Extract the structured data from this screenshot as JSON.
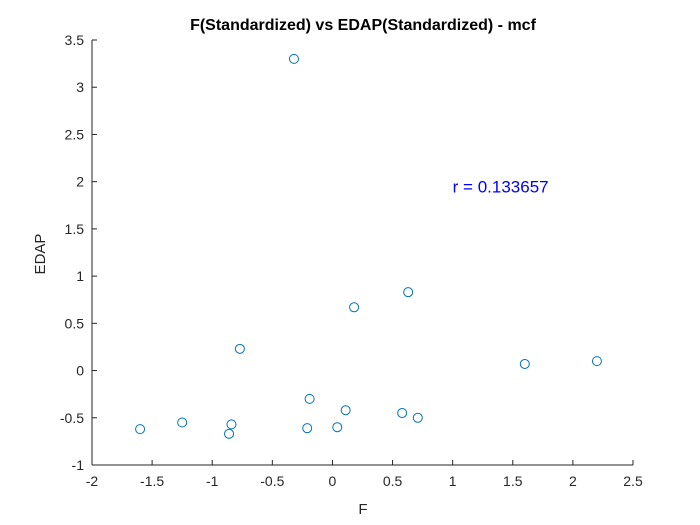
{
  "chart_data": {
    "type": "scatter",
    "title": "F(Standardized) vs EDAP(Standardized) - mcf",
    "xlabel": "F",
    "ylabel": "EDAP",
    "xlim": [
      -2,
      2.5
    ],
    "ylim": [
      -1,
      3.5
    ],
    "xticks": [
      -2,
      -1.5,
      -1,
      -0.5,
      0,
      0.5,
      1,
      1.5,
      2,
      2.5
    ],
    "yticks": [
      -1,
      -0.5,
      0,
      0.5,
      1,
      1.5,
      2,
      2.5,
      3,
      3.5
    ],
    "xtick_labels": [
      "-2",
      "-1.5",
      "-1",
      "-0.5",
      "0",
      "0.5",
      "1",
      "1.5",
      "2",
      "2.5"
    ],
    "ytick_labels": [
      "-1",
      "-0.5",
      "0",
      "0.5",
      "1",
      "1.5",
      "2",
      "2.5",
      "3",
      "3.5"
    ],
    "grid": false,
    "marker": "open-circle",
    "marker_color": "#0072BD",
    "points": [
      {
        "x": -0.32,
        "y": 3.3
      },
      {
        "x": 0.18,
        "y": 0.67
      },
      {
        "x": 0.63,
        "y": 0.83
      },
      {
        "x": -0.77,
        "y": 0.23
      },
      {
        "x": 1.6,
        "y": 0.07
      },
      {
        "x": 2.2,
        "y": 0.1
      },
      {
        "x": -0.19,
        "y": -0.3
      },
      {
        "x": 0.11,
        "y": -0.42
      },
      {
        "x": 0.58,
        "y": -0.45
      },
      {
        "x": 0.71,
        "y": -0.5
      },
      {
        "x": -1.25,
        "y": -0.55
      },
      {
        "x": -0.84,
        "y": -0.57
      },
      {
        "x": -1.6,
        "y": -0.62
      },
      {
        "x": -0.21,
        "y": -0.61
      },
      {
        "x": 0.04,
        "y": -0.6
      },
      {
        "x": -0.86,
        "y": -0.67
      }
    ],
    "annotation": {
      "text": "r = 0.133657",
      "color": "#0000FF",
      "x": 1.0,
      "y": 1.95
    }
  }
}
